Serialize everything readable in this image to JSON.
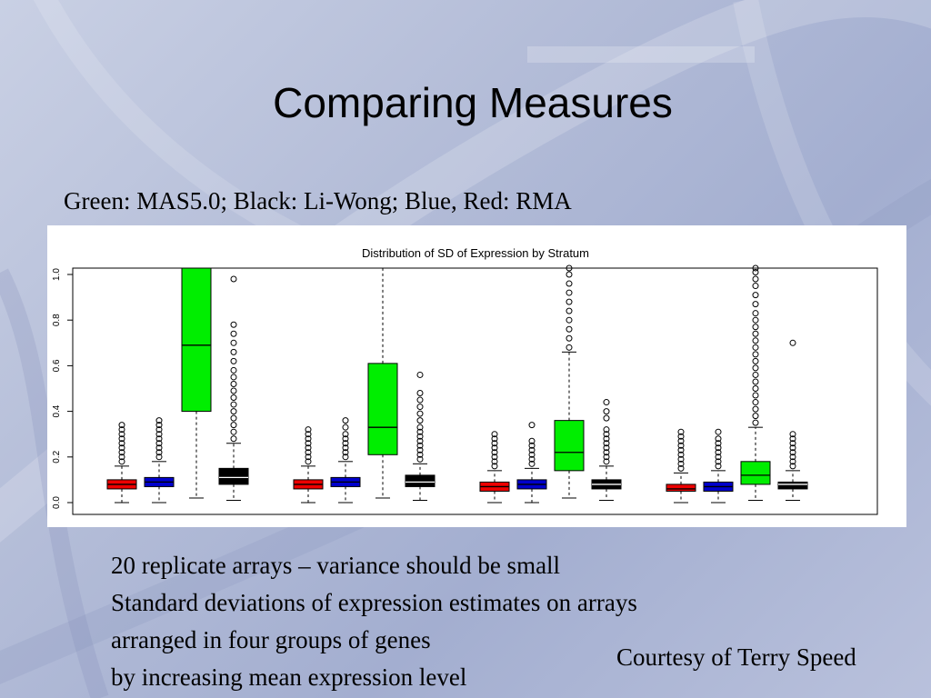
{
  "slide": {
    "title": "Comparing Measures",
    "caption": "Green: MAS5.0; Black: Li-Wong; Blue, Red: RMA",
    "notes": [
      "20 replicate arrays – variance should be small",
      "Standard deviations of expression estimates on arrays",
      "arranged in four groups of genes",
      "by increasing mean expression level"
    ],
    "credit": "Courtesy of Terry Speed"
  },
  "colors": {
    "rma_red": "#ee0000",
    "rma_blue": "#0000cc",
    "mas5_green": "#00ee00",
    "li_wong_black": "#000000"
  },
  "chart_data": {
    "type": "boxplot",
    "title": "Distribution of SD of Expression by Stratum",
    "xlabel": "",
    "ylabel": "",
    "ylim": [
      0,
      1.0
    ],
    "yticks": [
      "0.0",
      "0.2",
      "0.4",
      "0.6",
      "0.8",
      "1.0"
    ],
    "grid": false,
    "boxes": [
      {
        "group": 1,
        "color": "#ee0000",
        "min": 0.0,
        "q1": 0.06,
        "median": 0.08,
        "q3": 0.1,
        "max": 0.16,
        "outliers": [
          0.18,
          0.2,
          0.22,
          0.24,
          0.26,
          0.28,
          0.3,
          0.32,
          0.34
        ]
      },
      {
        "group": 1,
        "color": "#0000cc",
        "min": 0.0,
        "q1": 0.07,
        "median": 0.09,
        "q3": 0.11,
        "max": 0.18,
        "outliers": [
          0.2,
          0.22,
          0.24,
          0.26,
          0.28,
          0.3,
          0.32,
          0.34,
          0.36
        ]
      },
      {
        "group": 1,
        "color": "#00ee00",
        "min": 0.02,
        "q1": 0.4,
        "median": 0.69,
        "q3": 1.05,
        "max": 1.05,
        "outliers": []
      },
      {
        "group": 1,
        "color": "#000000",
        "min": 0.01,
        "q1": 0.08,
        "median": 0.11,
        "q3": 0.15,
        "max": 0.26,
        "outliers": [
          0.28,
          0.31,
          0.34,
          0.37,
          0.4,
          0.43,
          0.46,
          0.49,
          0.52,
          0.55,
          0.58,
          0.62,
          0.66,
          0.7,
          0.74,
          0.78,
          0.98
        ]
      },
      {
        "group": 2,
        "color": "#ee0000",
        "min": 0.0,
        "q1": 0.06,
        "median": 0.08,
        "q3": 0.1,
        "max": 0.16,
        "outliers": [
          0.18,
          0.2,
          0.22,
          0.24,
          0.26,
          0.28,
          0.3,
          0.32
        ]
      },
      {
        "group": 2,
        "color": "#0000cc",
        "min": 0.0,
        "q1": 0.07,
        "median": 0.09,
        "q3": 0.11,
        "max": 0.18,
        "outliers": [
          0.2,
          0.22,
          0.24,
          0.26,
          0.28,
          0.3,
          0.33,
          0.36
        ]
      },
      {
        "group": 2,
        "color": "#00ee00",
        "min": 0.02,
        "q1": 0.21,
        "median": 0.33,
        "q3": 0.61,
        "max": 1.05,
        "outliers": []
      },
      {
        "group": 2,
        "color": "#000000",
        "min": 0.01,
        "q1": 0.07,
        "median": 0.09,
        "q3": 0.12,
        "max": 0.17,
        "outliers": [
          0.19,
          0.21,
          0.23,
          0.25,
          0.27,
          0.29,
          0.31,
          0.33,
          0.36,
          0.39,
          0.42,
          0.45,
          0.48,
          0.56
        ]
      },
      {
        "group": 3,
        "color": "#ee0000",
        "min": 0.0,
        "q1": 0.05,
        "median": 0.07,
        "q3": 0.09,
        "max": 0.14,
        "outliers": [
          0.16,
          0.18,
          0.2,
          0.22,
          0.24,
          0.26,
          0.28,
          0.3
        ]
      },
      {
        "group": 3,
        "color": "#0000cc",
        "min": 0.0,
        "q1": 0.06,
        "median": 0.08,
        "q3": 0.1,
        "max": 0.15,
        "outliers": [
          0.17,
          0.19,
          0.21,
          0.23,
          0.25,
          0.27,
          0.34
        ]
      },
      {
        "group": 3,
        "color": "#00ee00",
        "min": 0.02,
        "q1": 0.14,
        "median": 0.22,
        "q3": 0.36,
        "max": 0.66,
        "outliers": [
          0.68,
          0.72,
          0.76,
          0.8,
          0.84,
          0.88,
          0.92,
          0.96,
          1.0,
          1.04
        ]
      },
      {
        "group": 3,
        "color": "#000000",
        "min": 0.01,
        "q1": 0.06,
        "median": 0.08,
        "q3": 0.1,
        "max": 0.16,
        "outliers": [
          0.18,
          0.2,
          0.22,
          0.24,
          0.26,
          0.28,
          0.3,
          0.32,
          0.37,
          0.4,
          0.44
        ]
      },
      {
        "group": 4,
        "color": "#ee0000",
        "min": 0.0,
        "q1": 0.05,
        "median": 0.06,
        "q3": 0.08,
        "max": 0.13,
        "outliers": [
          0.15,
          0.17,
          0.19,
          0.21,
          0.23,
          0.25,
          0.27,
          0.29,
          0.31
        ]
      },
      {
        "group": 4,
        "color": "#0000cc",
        "min": 0.0,
        "q1": 0.05,
        "median": 0.07,
        "q3": 0.09,
        "max": 0.14,
        "outliers": [
          0.16,
          0.18,
          0.2,
          0.22,
          0.24,
          0.26,
          0.28,
          0.31
        ]
      },
      {
        "group": 4,
        "color": "#00ee00",
        "min": 0.01,
        "q1": 0.08,
        "median": 0.12,
        "q3": 0.18,
        "max": 0.33,
        "outliers": [
          0.35,
          0.38,
          0.41,
          0.44,
          0.47,
          0.5,
          0.53,
          0.56,
          0.59,
          0.62,
          0.65,
          0.68,
          0.71,
          0.74,
          0.77,
          0.8,
          0.83,
          0.87,
          0.91,
          0.95,
          0.98,
          1.01,
          1.03
        ]
      },
      {
        "group": 4,
        "color": "#000000",
        "min": 0.01,
        "q1": 0.06,
        "median": 0.08,
        "q3": 0.09,
        "max": 0.14,
        "outliers": [
          0.16,
          0.18,
          0.2,
          0.22,
          0.24,
          0.26,
          0.28,
          0.3,
          0.7
        ]
      }
    ]
  }
}
